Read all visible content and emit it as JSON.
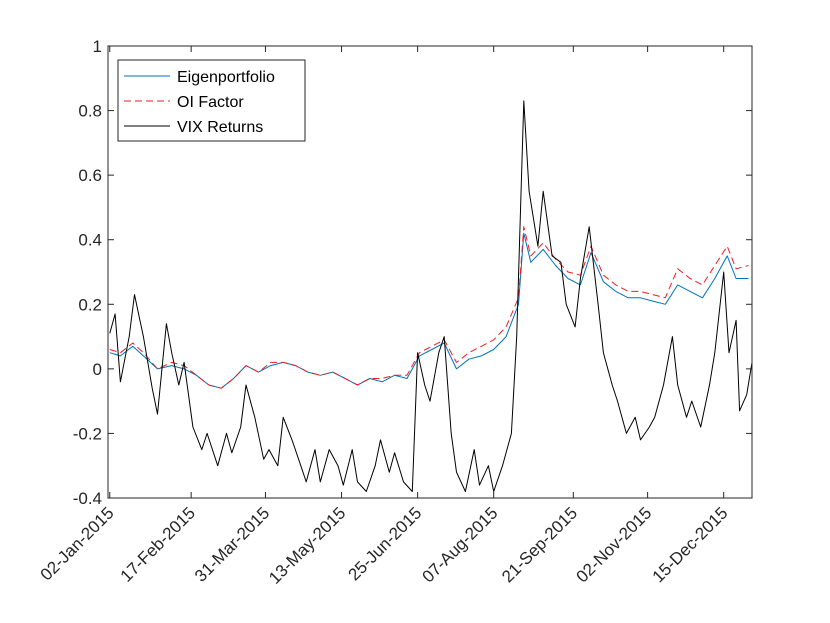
{
  "chart_data": {
    "type": "line",
    "title": "",
    "xlabel": "",
    "ylabel": "",
    "ylim": [
      -0.4,
      1
    ],
    "yticks": [
      "-0.4",
      "-0.2",
      "0",
      "0.2",
      "0.4",
      "0.6",
      "0.8",
      "1"
    ],
    "xticks": [
      "02-Jan-2015",
      "17-Feb-2015",
      "31-Mar-2015",
      "13-May-2015",
      "25-Jun-2015",
      "07-Aug-2015",
      "21-Sep-2015",
      "02-Nov-2015",
      "15-Dec-2015"
    ],
    "xlim": [
      "01-Jan-2015",
      "31-Dec-2015"
    ],
    "grid": false,
    "legend_position": "top-left",
    "series": [
      {
        "name": "Eigenportfolio",
        "color": "#0072BD",
        "style": "solid",
        "points": [
          [
            "02-Jan-2015",
            0.05
          ],
          [
            "08-Jan-2015",
            0.04
          ],
          [
            "15-Jan-2015",
            0.07
          ],
          [
            "21-Jan-2015",
            0.04
          ],
          [
            "29-Jan-2015",
            0.0
          ],
          [
            "06-Feb-2015",
            0.01
          ],
          [
            "13-Feb-2015",
            0.0
          ],
          [
            "20-Feb-2015",
            -0.02
          ],
          [
            "27-Feb-2015",
            -0.05
          ],
          [
            "06-Mar-2015",
            -0.06
          ],
          [
            "13-Mar-2015",
            -0.03
          ],
          [
            "20-Mar-2015",
            0.01
          ],
          [
            "27-Mar-2015",
            -0.01
          ],
          [
            "03-Apr-2015",
            0.01
          ],
          [
            "10-Apr-2015",
            0.02
          ],
          [
            "17-Apr-2015",
            0.01
          ],
          [
            "24-Apr-2015",
            -0.01
          ],
          [
            "01-May-2015",
            -0.02
          ],
          [
            "08-May-2015",
            -0.01
          ],
          [
            "15-May-2015",
            -0.03
          ],
          [
            "22-May-2015",
            -0.05
          ],
          [
            "29-May-2015",
            -0.03
          ],
          [
            "05-Jun-2015",
            -0.04
          ],
          [
            "12-Jun-2015",
            -0.02
          ],
          [
            "19-Jun-2015",
            -0.03
          ],
          [
            "26-Jun-2015",
            0.04
          ],
          [
            "03-Jul-2015",
            0.06
          ],
          [
            "10-Jul-2015",
            0.08
          ],
          [
            "17-Jul-2015",
            0.0
          ],
          [
            "24-Jul-2015",
            0.03
          ],
          [
            "31-Jul-2015",
            0.04
          ],
          [
            "07-Aug-2015",
            0.06
          ],
          [
            "14-Aug-2015",
            0.1
          ],
          [
            "21-Aug-2015",
            0.2
          ],
          [
            "24-Aug-2015",
            0.42
          ],
          [
            "28-Aug-2015",
            0.33
          ],
          [
            "04-Sep-2015",
            0.37
          ],
          [
            "11-Sep-2015",
            0.32
          ],
          [
            "18-Sep-2015",
            0.28
          ],
          [
            "25-Sep-2015",
            0.26
          ],
          [
            "01-Oct-2015",
            0.36
          ],
          [
            "08-Oct-2015",
            0.27
          ],
          [
            "15-Oct-2015",
            0.24
          ],
          [
            "22-Oct-2015",
            0.22
          ],
          [
            "29-Oct-2015",
            0.22
          ],
          [
            "05-Nov-2015",
            0.21
          ],
          [
            "12-Nov-2015",
            0.2
          ],
          [
            "19-Nov-2015",
            0.26
          ],
          [
            "26-Nov-2015",
            0.24
          ],
          [
            "03-Dec-2015",
            0.22
          ],
          [
            "10-Dec-2015",
            0.28
          ],
          [
            "17-Dec-2015",
            0.35
          ],
          [
            "22-Dec-2015",
            0.28
          ],
          [
            "29-Dec-2015",
            0.28
          ]
        ]
      },
      {
        "name": "OI Factor",
        "color": "#EE1D23",
        "style": "dashed",
        "points": [
          [
            "02-Jan-2015",
            0.06
          ],
          [
            "08-Jan-2015",
            0.05
          ],
          [
            "15-Jan-2015",
            0.08
          ],
          [
            "21-Jan-2015",
            0.05
          ],
          [
            "29-Jan-2015",
            0.0
          ],
          [
            "06-Feb-2015",
            0.02
          ],
          [
            "13-Feb-2015",
            0.01
          ],
          [
            "20-Feb-2015",
            -0.02
          ],
          [
            "27-Feb-2015",
            -0.05
          ],
          [
            "06-Mar-2015",
            -0.06
          ],
          [
            "13-Mar-2015",
            -0.03
          ],
          [
            "20-Mar-2015",
            0.01
          ],
          [
            "27-Mar-2015",
            -0.01
          ],
          [
            "03-Apr-2015",
            0.02
          ],
          [
            "10-Apr-2015",
            0.02
          ],
          [
            "17-Apr-2015",
            0.01
          ],
          [
            "24-Apr-2015",
            -0.01
          ],
          [
            "01-May-2015",
            -0.02
          ],
          [
            "08-May-2015",
            -0.01
          ],
          [
            "15-May-2015",
            -0.03
          ],
          [
            "22-May-2015",
            -0.05
          ],
          [
            "29-May-2015",
            -0.03
          ],
          [
            "05-Jun-2015",
            -0.03
          ],
          [
            "12-Jun-2015",
            -0.02
          ],
          [
            "19-Jun-2015",
            -0.02
          ],
          [
            "26-Jun-2015",
            0.05
          ],
          [
            "03-Jul-2015",
            0.07
          ],
          [
            "10-Jul-2015",
            0.09
          ],
          [
            "17-Jul-2015",
            0.02
          ],
          [
            "24-Jul-2015",
            0.05
          ],
          [
            "31-Jul-2015",
            0.07
          ],
          [
            "07-Aug-2015",
            0.09
          ],
          [
            "14-Aug-2015",
            0.13
          ],
          [
            "21-Aug-2015",
            0.22
          ],
          [
            "24-Aug-2015",
            0.44
          ],
          [
            "28-Aug-2015",
            0.35
          ],
          [
            "04-Sep-2015",
            0.39
          ],
          [
            "11-Sep-2015",
            0.34
          ],
          [
            "18-Sep-2015",
            0.3
          ],
          [
            "25-Sep-2015",
            0.29
          ],
          [
            "01-Oct-2015",
            0.38
          ],
          [
            "08-Oct-2015",
            0.29
          ],
          [
            "15-Oct-2015",
            0.26
          ],
          [
            "22-Oct-2015",
            0.24
          ],
          [
            "29-Oct-2015",
            0.24
          ],
          [
            "05-Nov-2015",
            0.23
          ],
          [
            "12-Nov-2015",
            0.22
          ],
          [
            "19-Nov-2015",
            0.31
          ],
          [
            "26-Nov-2015",
            0.28
          ],
          [
            "03-Dec-2015",
            0.26
          ],
          [
            "10-Dec-2015",
            0.32
          ],
          [
            "17-Dec-2015",
            0.38
          ],
          [
            "22-Dec-2015",
            0.31
          ],
          [
            "29-Dec-2015",
            0.32
          ]
        ]
      },
      {
        "name": "VIX Returns",
        "color": "#000000",
        "style": "solid",
        "points": [
          [
            "02-Jan-2015",
            0.11
          ],
          [
            "05-Jan-2015",
            0.17
          ],
          [
            "08-Jan-2015",
            -0.04
          ],
          [
            "13-Jan-2015",
            0.1
          ],
          [
            "16-Jan-2015",
            0.23
          ],
          [
            "21-Jan-2015",
            0.1
          ],
          [
            "26-Jan-2015",
            -0.06
          ],
          [
            "29-Jan-2015",
            -0.14
          ],
          [
            "03-Feb-2015",
            0.14
          ],
          [
            "06-Feb-2015",
            0.05
          ],
          [
            "10-Feb-2015",
            -0.05
          ],
          [
            "13-Feb-2015",
            0.02
          ],
          [
            "18-Feb-2015",
            -0.18
          ],
          [
            "23-Feb-2015",
            -0.25
          ],
          [
            "26-Feb-2015",
            -0.2
          ],
          [
            "04-Mar-2015",
            -0.3
          ],
          [
            "09-Mar-2015",
            -0.2
          ],
          [
            "12-Mar-2015",
            -0.26
          ],
          [
            "17-Mar-2015",
            -0.18
          ],
          [
            "20-Mar-2015",
            -0.05
          ],
          [
            "25-Mar-2015",
            -0.15
          ],
          [
            "30-Mar-2015",
            -0.28
          ],
          [
            "02-Apr-2015",
            -0.25
          ],
          [
            "07-Apr-2015",
            -0.3
          ],
          [
            "10-Apr-2015",
            -0.15
          ],
          [
            "15-Apr-2015",
            -0.22
          ],
          [
            "20-Apr-2015",
            -0.3
          ],
          [
            "23-Apr-2015",
            -0.35
          ],
          [
            "28-Apr-2015",
            -0.25
          ],
          [
            "01-May-2015",
            -0.35
          ],
          [
            "06-May-2015",
            -0.25
          ],
          [
            "11-May-2015",
            -0.3
          ],
          [
            "14-May-2015",
            -0.36
          ],
          [
            "19-May-2015",
            -0.25
          ],
          [
            "22-May-2015",
            -0.35
          ],
          [
            "27-May-2015",
            -0.38
          ],
          [
            "01-Jun-2015",
            -0.3
          ],
          [
            "04-Jun-2015",
            -0.22
          ],
          [
            "09-Jun-2015",
            -0.32
          ],
          [
            "12-Jun-2015",
            -0.26
          ],
          [
            "17-Jun-2015",
            -0.35
          ],
          [
            "22-Jun-2015",
            -0.38
          ],
          [
            "25-Jun-2015",
            0.05
          ],
          [
            "29-Jun-2015",
            -0.05
          ],
          [
            "02-Jul-2015",
            -0.1
          ],
          [
            "07-Jul-2015",
            0.05
          ],
          [
            "10-Jul-2015",
            0.1
          ],
          [
            "14-Jul-2015",
            -0.2
          ],
          [
            "17-Jul-2015",
            -0.32
          ],
          [
            "22-Jul-2015",
            -0.38
          ],
          [
            "27-Jul-2015",
            -0.25
          ],
          [
            "30-Jul-2015",
            -0.36
          ],
          [
            "04-Aug-2015",
            -0.3
          ],
          [
            "07-Aug-2015",
            -0.38
          ],
          [
            "12-Aug-2015",
            -0.3
          ],
          [
            "17-Aug-2015",
            -0.2
          ],
          [
            "20-Aug-2015",
            0.1
          ],
          [
            "24-Aug-2015",
            0.83
          ],
          [
            "27-Aug-2015",
            0.55
          ],
          [
            "01-Sep-2015",
            0.38
          ],
          [
            "04-Sep-2015",
            0.55
          ],
          [
            "09-Sep-2015",
            0.35
          ],
          [
            "14-Sep-2015",
            0.33
          ],
          [
            "17-Sep-2015",
            0.2
          ],
          [
            "22-Sep-2015",
            0.13
          ],
          [
            "25-Sep-2015",
            0.28
          ],
          [
            "30-Sep-2015",
            0.44
          ],
          [
            "05-Oct-2015",
            0.2
          ],
          [
            "08-Oct-2015",
            0.05
          ],
          [
            "13-Oct-2015",
            -0.05
          ],
          [
            "16-Oct-2015",
            -0.1
          ],
          [
            "21-Oct-2015",
            -0.2
          ],
          [
            "26-Oct-2015",
            -0.15
          ],
          [
            "29-Oct-2015",
            -0.22
          ],
          [
            "03-Nov-2015",
            -0.18
          ],
          [
            "06-Nov-2015",
            -0.15
          ],
          [
            "11-Nov-2015",
            -0.05
          ],
          [
            "16-Nov-2015",
            0.1
          ],
          [
            "19-Nov-2015",
            -0.05
          ],
          [
            "24-Nov-2015",
            -0.15
          ],
          [
            "27-Nov-2015",
            -0.1
          ],
          [
            "02-Dec-2015",
            -0.18
          ],
          [
            "07-Dec-2015",
            -0.05
          ],
          [
            "10-Dec-2015",
            0.05
          ],
          [
            "15-Dec-2015",
            0.3
          ],
          [
            "18-Dec-2015",
            0.05
          ],
          [
            "22-Dec-2015",
            0.15
          ],
          [
            "24-Dec-2015",
            -0.13
          ],
          [
            "28-Dec-2015",
            -0.08
          ],
          [
            "31-Dec-2015",
            0.02
          ]
        ]
      }
    ]
  }
}
